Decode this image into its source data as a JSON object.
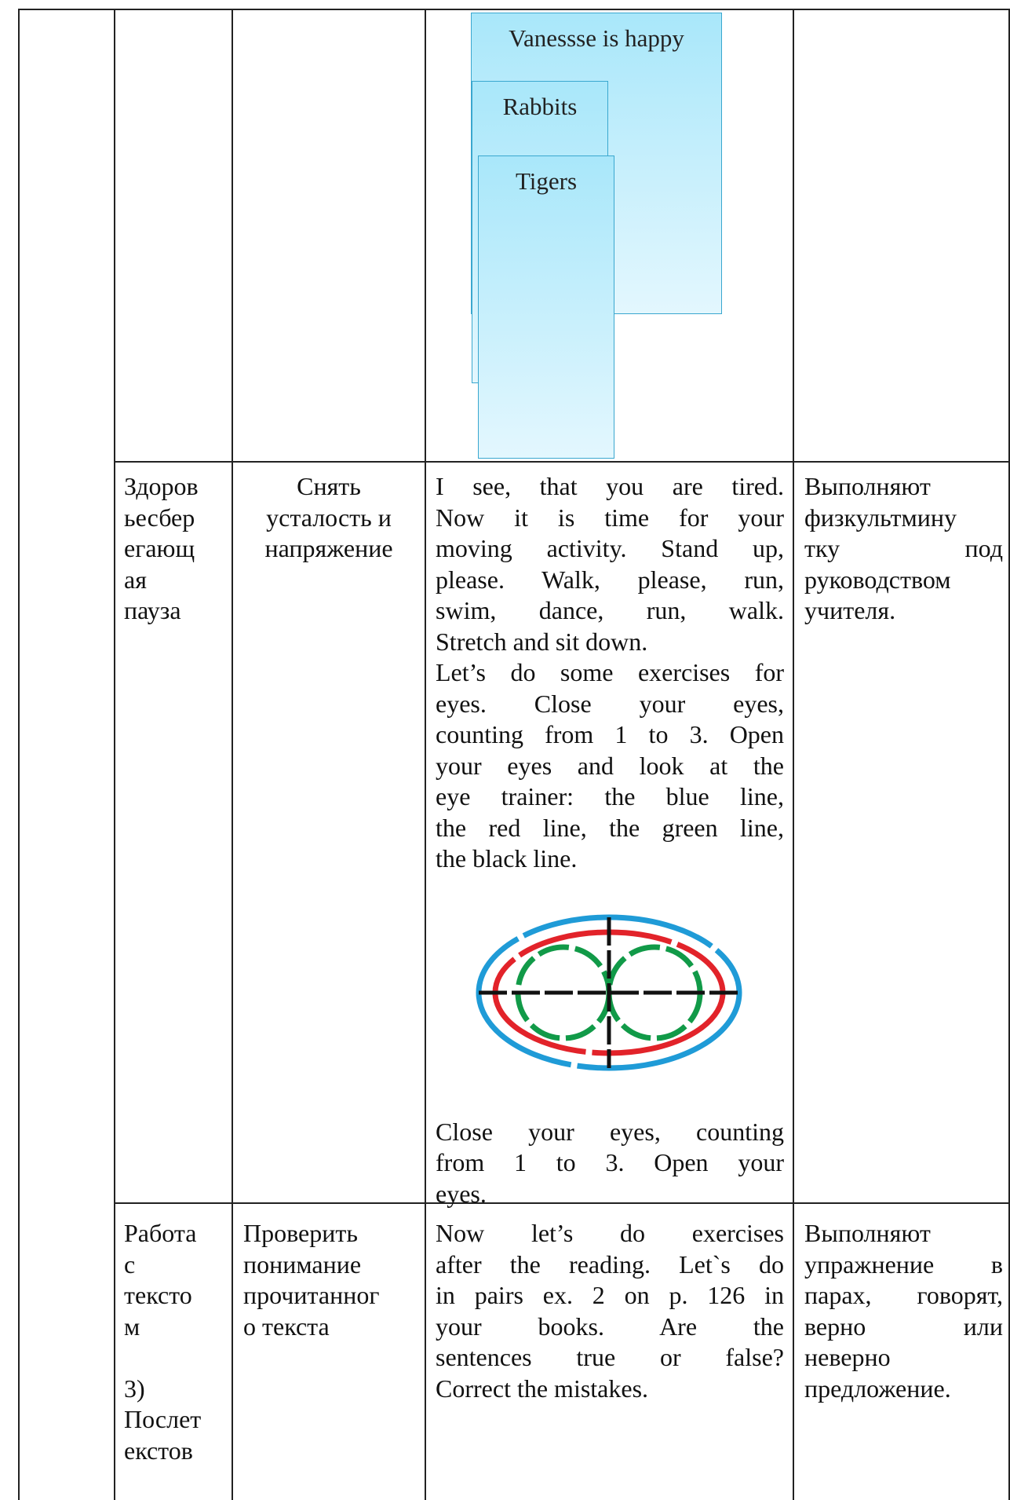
{
  "rows": [
    {
      "diagram": [
        "Vanessse is happy",
        "Rabbits",
        "Tigers"
      ]
    },
    {
      "stage": [
        [
          "Здоров",
          "ьесбер",
          "егающ",
          "ая",
          "пауза"
        ]
      ],
      "goal": [
        [
          "Снять",
          "усталость и",
          "напряжение"
        ]
      ],
      "teacher": [
        [
          "I see, that you are tired.",
          "Now it is time for your",
          "moving activity. Stand up,",
          "please. Walk, please, run,",
          "swim, dance, run, walk.",
          "Stretch and sit down."
        ],
        [
          "Let’s do some exercises for",
          "eyes. Close your eyes,",
          "counting from 1 to 3. Open",
          "your eyes and look at the",
          "eye trainer: the blue line,",
          "the red line, the green line,",
          "the black line."
        ],
        [
          "Close your eyes, counting",
          "from 1 to 3. Open your",
          "eyes."
        ]
      ],
      "student": [
        [
          "Выполняют",
          "физкультмину",
          "тку под",
          "руководством",
          "учителя."
        ]
      ]
    },
    {
      "stage": [
        [
          "Работа",
          "с",
          "тексто",
          "м"
        ],
        [
          "3)",
          "Послет",
          "екстов"
        ]
      ],
      "goal": [
        [
          "Проверить",
          "понимание",
          "прочитанног",
          "о текста"
        ]
      ],
      "teacher": [
        [
          "Now let’s do exercises",
          "after the reading. Let`s do",
          "in pairs ex. 2 on p. 126 in",
          "your books. Are the",
          "sentences true or false?",
          "Correct the mistakes."
        ]
      ],
      "student": [
        [
          "Выполняют",
          "упражнение в",
          "парах, говорят,",
          "верно или",
          "неверно",
          "предложение."
        ]
      ]
    }
  ]
}
